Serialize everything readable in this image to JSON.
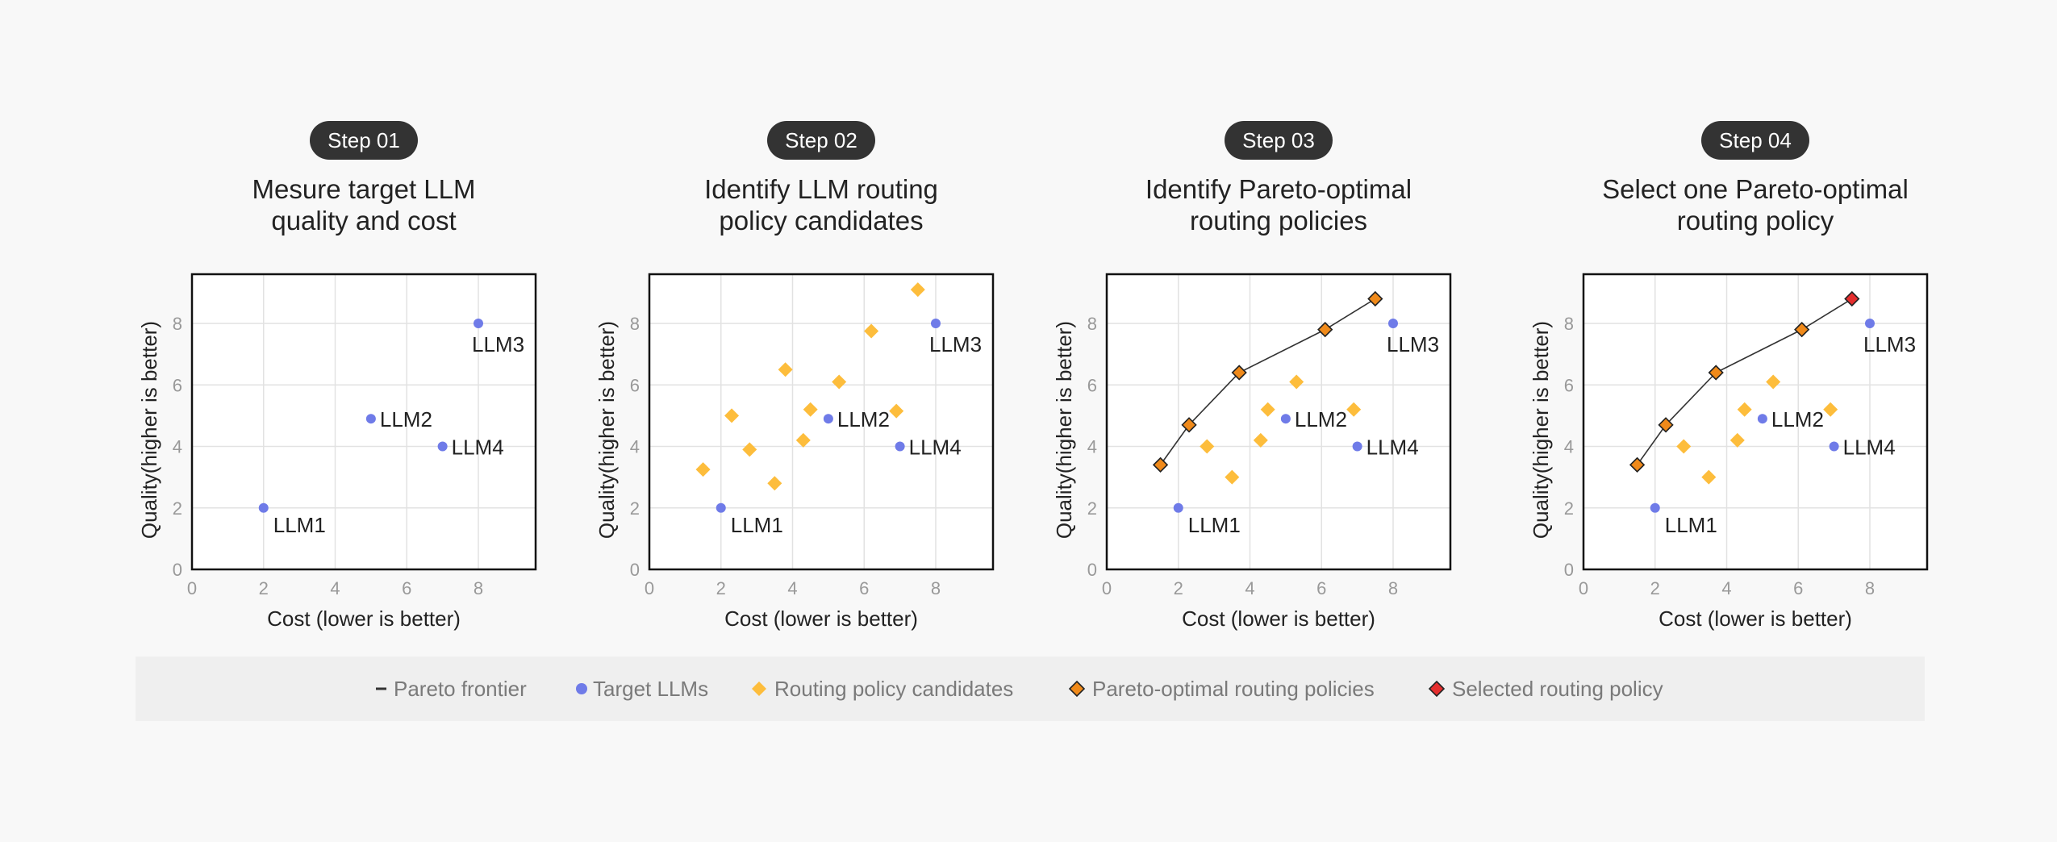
{
  "colors": {
    "target": "#6f7be8",
    "candidate": "#fdbd3c",
    "pareto": "#f08a1a",
    "selected": "#e52e2e",
    "frontier": "#333333",
    "badge": "#333333"
  },
  "legend": {
    "items": [
      {
        "marker": "line",
        "label": "Pareto frontier"
      },
      {
        "marker": "circle",
        "label": "Target LLMs"
      },
      {
        "marker": "diamond-candidate",
        "label": "Routing policy candidates"
      },
      {
        "marker": "diamond-pareto",
        "label": "Pareto-optimal routing policies"
      },
      {
        "marker": "diamond-selected",
        "label": "Selected routing policy"
      }
    ]
  },
  "chart_data": [
    {
      "type": "scatter",
      "step": "Step 01",
      "title_lines": [
        "Mesure target LLM",
        "quality and cost"
      ],
      "xlabel": "Cost (lower is better)",
      "ylabel": "Quality(higher is better)",
      "xlim": [
        0,
        9.6
      ],
      "ylim": [
        0,
        9.6
      ],
      "xticks": [
        0,
        2,
        4,
        6,
        8
      ],
      "yticks": [
        0,
        2,
        4,
        6,
        8
      ],
      "grid": true,
      "targets": [
        {
          "name": "LLM1",
          "x": 2.0,
          "y": 2.0
        },
        {
          "name": "LLM2",
          "x": 5.0,
          "y": 4.9
        },
        {
          "name": "LLM3",
          "x": 8.0,
          "y": 8.0
        },
        {
          "name": "LLM4",
          "x": 7.0,
          "y": 4.0
        }
      ],
      "candidates": [],
      "pareto": [],
      "selected": []
    },
    {
      "type": "scatter",
      "step": "Step 02",
      "title_lines": [
        "Identify LLM routing",
        "policy candidates"
      ],
      "xlabel": "Cost (lower is better)",
      "ylabel": "Quality(higher is better)",
      "xlim": [
        0,
        9.6
      ],
      "ylim": [
        0,
        9.6
      ],
      "xticks": [
        0,
        2,
        4,
        6,
        8
      ],
      "yticks": [
        0,
        2,
        4,
        6,
        8
      ],
      "grid": true,
      "targets": [
        {
          "name": "LLM1",
          "x": 2.0,
          "y": 2.0
        },
        {
          "name": "LLM2",
          "x": 5.0,
          "y": 4.9
        },
        {
          "name": "LLM3",
          "x": 8.0,
          "y": 8.0
        },
        {
          "name": "LLM4",
          "x": 7.0,
          "y": 4.0
        }
      ],
      "candidates": [
        {
          "x": 1.5,
          "y": 3.25
        },
        {
          "x": 2.3,
          "y": 5.0
        },
        {
          "x": 2.8,
          "y": 3.9
        },
        {
          "x": 3.5,
          "y": 2.8
        },
        {
          "x": 3.8,
          "y": 6.5
        },
        {
          "x": 4.3,
          "y": 4.2
        },
        {
          "x": 4.5,
          "y": 5.2
        },
        {
          "x": 5.3,
          "y": 6.1
        },
        {
          "x": 6.2,
          "y": 7.75
        },
        {
          "x": 6.9,
          "y": 5.15
        },
        {
          "x": 7.5,
          "y": 9.1
        }
      ],
      "pareto": [],
      "selected": []
    },
    {
      "type": "scatter",
      "step": "Step 03",
      "title_lines": [
        "Identify Pareto-optimal",
        "routing policies"
      ],
      "xlabel": "Cost (lower is better)",
      "ylabel": "Quality(higher is better)",
      "xlim": [
        0,
        9.6
      ],
      "ylim": [
        0,
        9.6
      ],
      "xticks": [
        0,
        2,
        4,
        6,
        8
      ],
      "yticks": [
        0,
        2,
        4,
        6,
        8
      ],
      "grid": true,
      "targets": [
        {
          "name": "LLM1",
          "x": 2.0,
          "y": 2.0
        },
        {
          "name": "LLM2",
          "x": 5.0,
          "y": 4.9
        },
        {
          "name": "LLM3",
          "x": 8.0,
          "y": 8.0
        },
        {
          "name": "LLM4",
          "x": 7.0,
          "y": 4.0
        }
      ],
      "candidates": [
        {
          "x": 2.8,
          "y": 4.0
        },
        {
          "x": 3.5,
          "y": 3.0
        },
        {
          "x": 4.3,
          "y": 4.2
        },
        {
          "x": 4.5,
          "y": 5.2
        },
        {
          "x": 5.3,
          "y": 6.1
        },
        {
          "x": 6.9,
          "y": 5.2
        }
      ],
      "pareto": [
        {
          "x": 1.5,
          "y": 3.4
        },
        {
          "x": 2.3,
          "y": 4.7
        },
        {
          "x": 3.7,
          "y": 6.4
        },
        {
          "x": 6.1,
          "y": 7.8
        },
        {
          "x": 7.5,
          "y": 8.8
        }
      ],
      "selected": [],
      "frontier": true
    },
    {
      "type": "scatter",
      "step": "Step 04",
      "title_lines": [
        "Select one Pareto-optimal",
        "routing policy"
      ],
      "xlabel": "Cost (lower is better)",
      "ylabel": "Quality(higher is better)",
      "xlim": [
        0,
        9.6
      ],
      "ylim": [
        0,
        9.6
      ],
      "xticks": [
        0,
        2,
        4,
        6,
        8
      ],
      "yticks": [
        0,
        2,
        4,
        6,
        8
      ],
      "grid": true,
      "targets": [
        {
          "name": "LLM1",
          "x": 2.0,
          "y": 2.0
        },
        {
          "name": "LLM2",
          "x": 5.0,
          "y": 4.9
        },
        {
          "name": "LLM3",
          "x": 8.0,
          "y": 8.0
        },
        {
          "name": "LLM4",
          "x": 7.0,
          "y": 4.0
        }
      ],
      "candidates": [
        {
          "x": 2.8,
          "y": 4.0
        },
        {
          "x": 3.5,
          "y": 3.0
        },
        {
          "x": 4.3,
          "y": 4.2
        },
        {
          "x": 4.5,
          "y": 5.2
        },
        {
          "x": 5.3,
          "y": 6.1
        },
        {
          "x": 6.9,
          "y": 5.2
        }
      ],
      "pareto": [
        {
          "x": 1.5,
          "y": 3.4
        },
        {
          "x": 2.3,
          "y": 4.7
        },
        {
          "x": 3.7,
          "y": 6.4
        },
        {
          "x": 6.1,
          "y": 7.8
        }
      ],
      "selected": [
        {
          "x": 7.5,
          "y": 8.8
        }
      ],
      "frontier": true
    }
  ]
}
